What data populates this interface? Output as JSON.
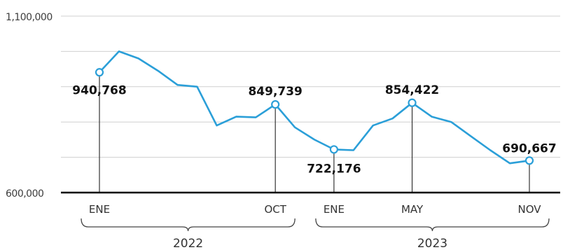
{
  "chart_data": {
    "type": "line",
    "y_ticks": [
      "1,100,000",
      "600,000"
    ],
    "ylim": [
      600000,
      1100000
    ],
    "grid": true,
    "series": [
      {
        "values": [
          940768,
          1000000,
          980000,
          945000,
          905000,
          900000,
          790000,
          815000,
          813000,
          849739,
          785000,
          750000,
          722176,
          720000,
          790000,
          810000,
          854422,
          815000,
          800000,
          760000,
          720000,
          683000,
          690667
        ]
      }
    ],
    "annotations": [
      {
        "index": 0,
        "label": "940,768",
        "value": 940768
      },
      {
        "index": 9,
        "label": "849,739",
        "value": 849739
      },
      {
        "index": 12,
        "label": "722,176",
        "value": 722176
      },
      {
        "index": 16,
        "label": "854,422",
        "value": 854422
      },
      {
        "index": 22,
        "label": "690,667",
        "value": 690667
      }
    ],
    "x_ticks": [
      {
        "index": 0,
        "label": "ENE"
      },
      {
        "index": 9,
        "label": "OCT"
      },
      {
        "index": 12,
        "label": "ENE"
      },
      {
        "index": 16,
        "label": "MAY"
      },
      {
        "index": 22,
        "label": "NOV"
      }
    ],
    "year_groups": [
      {
        "label": "2022",
        "start": 0,
        "end": 9
      },
      {
        "label": "2023",
        "start": 12,
        "end": 22
      }
    ],
    "colors": {
      "line": "#2b9fd8",
      "axis": "#000000",
      "grid": "#d0d0d0",
      "leader": "#333333"
    }
  }
}
